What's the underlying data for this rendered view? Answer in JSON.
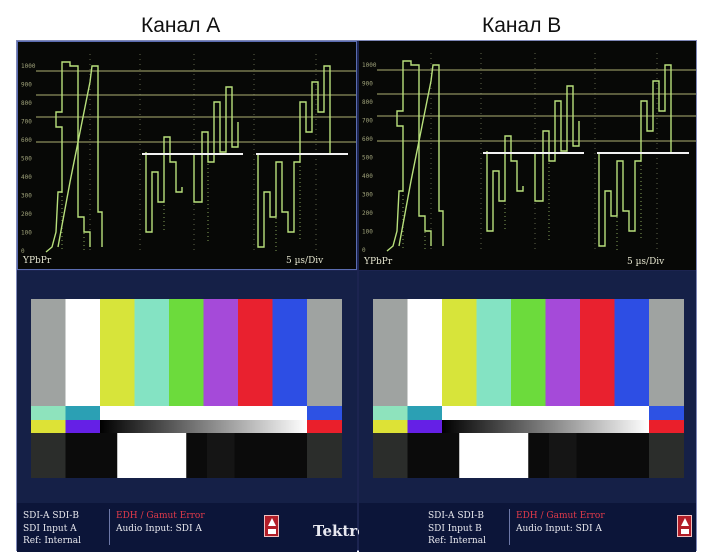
{
  "captions": {
    "a": "Канал A",
    "b": "Канал B"
  },
  "waveform": {
    "format_label": "YPbPr",
    "sweep_label": "5 µs/Div",
    "graticule_labels": [
      "1000",
      "900",
      "800",
      "700",
      "600",
      "500",
      "400",
      "300",
      "200",
      "100",
      "0"
    ],
    "trace_color": "#b8e07c",
    "graticule_color": "#d8dc8c",
    "marker_color": "#f2f2f2"
  },
  "color_bars": {
    "top_row": [
      "#9fa3a1",
      "#ffffff",
      "#d7e43a",
      "#84e3c3",
      "#6cdb3c",
      "#a54ad9",
      "#e9212f",
      "#2d4ee4",
      "#9fa3a1"
    ],
    "pluge_colors": [
      "#2b2d2b",
      "#0b0b0b",
      "#ffffff",
      "#0b0b0b",
      "#151515",
      "#0b0b0b",
      "#2b2d2b"
    ]
  },
  "status": {
    "a": {
      "line1": "SDI-A SDI-B",
      "line2": "SDI Input A",
      "line3": "Ref: Internal",
      "alarm": "EDH / Gamut Error",
      "audio": "Audio Input: SDI A"
    },
    "b": {
      "line1": "SDI-A SDI-B",
      "line2": "SDI Input B",
      "line3": "Ref: Internal",
      "alarm": "EDH / Gamut Error",
      "audio": "Audio Input: SDI A"
    },
    "logo": "Tektronix"
  }
}
